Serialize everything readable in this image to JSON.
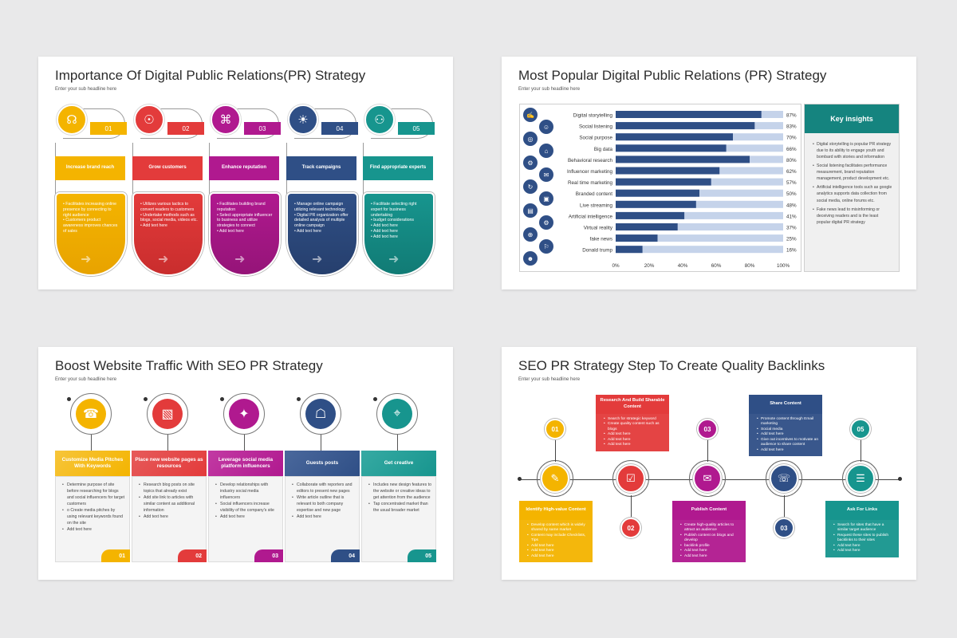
{
  "slide1": {
    "title": "Importance Of Digital Public Relations(PR) Strategy",
    "subtitle": "Enter your sub headline here",
    "cards": [
      {
        "num": "01",
        "label": "Increase brand reach",
        "icon": "megaphone-icon",
        "glyph": "☊",
        "color": "#f4b400",
        "dark": "#e8a300",
        "items": [
          "Facilitates increasing online presence by connecting to right audience",
          "Customers product awareness improves chances of sales"
        ]
      },
      {
        "num": "02",
        "label": "Grow customers",
        "icon": "customer-search-icon",
        "glyph": "☉",
        "color": "#e33b3b",
        "dark": "#c92d2d",
        "items": [
          "Utilizes various tactics to convert readers to customers",
          "Undertake methods such as blogs, social media, videos etc.",
          "Add text here"
        ]
      },
      {
        "num": "03",
        "label": "Enhance reputation",
        "icon": "network-icon",
        "glyph": "⌘",
        "color": "#b0198f",
        "dark": "#951478",
        "items": [
          "Facilitates building brand reputation",
          "Select appropriate influencer to business and utilize strategies to connect",
          "Add text here"
        ]
      },
      {
        "num": "04",
        "label": "Track campaigns",
        "icon": "lightbulb-icon",
        "glyph": "☀",
        "color": "#2f4f86",
        "dark": "#263f6d",
        "items": [
          "Manage online campaign utilizing relevant technology",
          "Digital PR organization offer detailed analysis of multiple online campaign",
          "Add text here"
        ]
      },
      {
        "num": "05",
        "label": "Find appropriate experts",
        "icon": "team-icon",
        "glyph": "⚇",
        "color": "#17958e",
        "dark": "#117b75",
        "items": [
          "Facilitate selecting right expert for business undertaking",
          "budget considerations",
          "Add text here",
          "Add text here",
          "Add text here"
        ]
      }
    ]
  },
  "slide2": {
    "title": "Most Popular Digital Public Relations (PR) Strategy",
    "subtitle": "Enter your sub headline here",
    "insights_title": "Key insights",
    "insights": [
      "Digital storytelling is popular PR strategy due to its ability to engage youth and bombard with stories and information",
      "Social listening facilitates performance measurement, brand reputation management, product development etc.",
      "Artificial intelligence tools such as google analytics supports data collection from social media, online forums etc.",
      "Fake news lead to misinforming or deceiving readers and is the least popular digital PR strategy"
    ],
    "icons": [
      "✍",
      "☺",
      "◎",
      "⌂",
      "⚙",
      "✉",
      "↻",
      "▣",
      "▤",
      "⚙",
      "⊕",
      "⚐",
      "☻"
    ]
  },
  "chart_data": {
    "type": "bar",
    "orientation": "horizontal",
    "categories": [
      "Digital storytelling",
      "Social listening",
      "Social purpose",
      "Big data",
      "Behavioral research",
      "Influencer marketing",
      "Real time marketing",
      "Branded content",
      "Live streaming",
      "Artificial intelligence",
      "Virtual reality",
      "fake news",
      "Donald trump"
    ],
    "values": [
      87,
      83,
      70,
      66,
      80,
      62,
      57,
      50,
      48,
      41,
      37,
      25,
      16
    ],
    "value_labels": [
      "87%",
      "83%",
      "70%",
      "66%",
      "80%",
      "62%",
      "57%",
      "50%",
      "48%",
      "41%",
      "37%",
      "25%",
      "16%"
    ],
    "xlim": [
      0,
      100
    ],
    "x_ticks": [
      "0%",
      "20%",
      "40%",
      "60%",
      "80%",
      "100%"
    ],
    "bar_color": "#2f4f86",
    "track_color": "#c5d3ea"
  },
  "slide3": {
    "title": "Boost Website Traffic With SEO PR Strategy",
    "subtitle": "Enter your sub headline here",
    "cards": [
      {
        "num": "01",
        "label": "Customize Media Pitches With Keywords",
        "icon": "phone-hand-icon",
        "glyph": "☎",
        "color": "#f4b400",
        "hdr": "#f7c53a",
        "items": [
          "Determine purpose of site before researching for blogs and social influencers for target customers",
          "o Create media pitches by using relevant keywords found on the site",
          "Add text here"
        ]
      },
      {
        "num": "02",
        "label": "Place new website pages as resources",
        "icon": "web-page-icon",
        "glyph": "▧",
        "color": "#e33b3b",
        "hdr": "#e65a5a",
        "items": [
          "Research blog posts on site topics that already exist",
          "Add site link to articles with similar content as additional information",
          "Add text here"
        ]
      },
      {
        "num": "03",
        "label": "Leverage social media platform influencers",
        "icon": "social-share-icon",
        "glyph": "✦",
        "color": "#b0198f",
        "hdr": "#c23aa3",
        "items": [
          "Develop relationships with industry social media influencers",
          "Social influencers increase visibility of the company's site",
          "Add text here"
        ]
      },
      {
        "num": "04",
        "label": "Guests posts",
        "icon": "meeting-icon",
        "glyph": "☖",
        "color": "#2f4f86",
        "hdr": "#4a689c",
        "items": [
          "Collaborate with reporters and editors to present new pages",
          "Write article outline that is relevant to both company expertise and new page",
          "Add text here"
        ]
      },
      {
        "num": "05",
        "label": "Get creative",
        "icon": "location-pin-icon",
        "glyph": "⌖",
        "color": "#17958e",
        "hdr": "#36aaa3",
        "items": [
          "Includes new design features to the website or creative ideas to get attention from the audience",
          "Tap concentrated market than the usual broader market"
        ]
      }
    ]
  },
  "slide4": {
    "title": "SEO PR Strategy Step To Create Quality Backlinks",
    "subtitle": "Enter your sub headline here",
    "nodes": [
      {
        "icon": "design-tools-icon",
        "glyph": "✎",
        "color": "#f4b400"
      },
      {
        "icon": "checklist-icon",
        "glyph": "☑",
        "color": "#e33b3b"
      },
      {
        "icon": "publish-icon",
        "glyph": "✉",
        "color": "#b0198f"
      },
      {
        "icon": "mobile-share-icon",
        "glyph": "☏",
        "color": "#2f4f86"
      },
      {
        "icon": "presentation-icon",
        "glyph": "☰",
        "color": "#17958e"
      }
    ],
    "badges": {
      "top": [
        "01",
        "03",
        "05"
      ],
      "bottom": [
        "02",
        "03"
      ]
    },
    "top_cards": [
      {
        "label": "Research And Build Sharable Content",
        "color": "#e33b3b",
        "items": [
          "Search for strategic keyword",
          "Create quality content such as blogs",
          "Add text here",
          "Add text here",
          "Add text here"
        ]
      },
      {
        "label": "Share Content",
        "color": "#2f4f86",
        "items": [
          "Promote content through Email marketing",
          "Social media",
          "Add text here",
          "Give out incentives to motivate an audience to share content",
          "Add text here"
        ]
      }
    ],
    "bottom_cards": [
      {
        "label": "Identify High-value Content",
        "color": "#f4b400",
        "items": [
          "Develop content which is widely shared by same market",
          "Content may include Checklists, Tips",
          "Add text here",
          "Add text here",
          "Add text here"
        ]
      },
      {
        "label": "Publish Content",
        "color": "#b0198f",
        "items": [
          "Create high-quality articles to attract an audience",
          "Publish content on blogs and develop",
          "backlink profile",
          "Add text here",
          "Add text here"
        ]
      },
      {
        "label": "Ask For Links",
        "color": "#17958e",
        "items": [
          "Search for sites that have a similar target audience",
          "Request these sites to publish backlinks to their sites",
          "Add text here",
          "Add text here"
        ]
      }
    ]
  }
}
